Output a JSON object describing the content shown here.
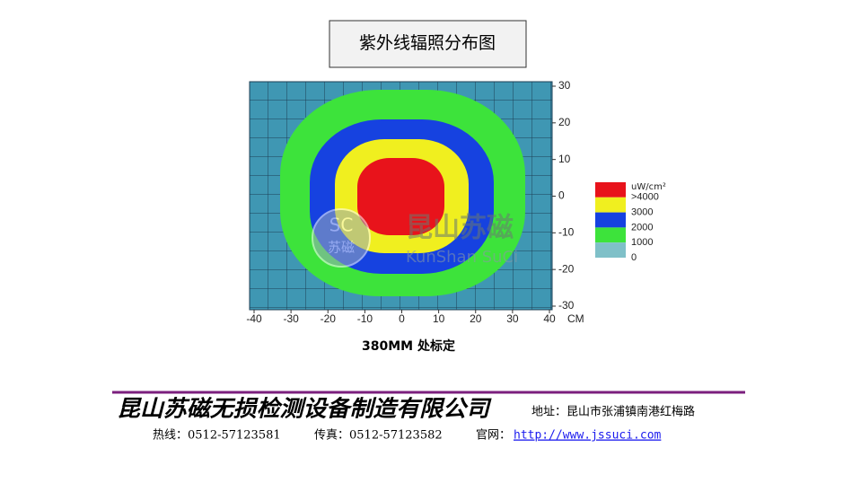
{
  "title": "紫外线辐照分布图",
  "chart": {
    "xticks": [
      -40,
      -30,
      -20,
      -10,
      0,
      10,
      20,
      30,
      40
    ],
    "yticks": [
      30,
      20,
      10,
      0,
      -10,
      -20,
      -30
    ],
    "xlim": [
      -40,
      40
    ],
    "ylim": [
      -30,
      30
    ],
    "x_unit": "CM",
    "legend": {
      "unit": "uW/cm²",
      "items": [
        {
          "label": ">4000",
          "color": "#e8131b"
        },
        {
          "label": "3000",
          "color": "#f0ef1f"
        },
        {
          "label": "2000",
          "color": "#1642e0"
        },
        {
          "label": "1000",
          "color": "#3de33b"
        },
        {
          "label": "0",
          "color": "#7fc0c8"
        }
      ]
    },
    "watermark": {
      "logo_top": "SC",
      "logo_bottom": "苏磁",
      "name": "昆山苏磁",
      "pinyin": "KunShan  SuCi"
    }
  },
  "caption": "380MM 处标定",
  "footer": {
    "company": "昆山苏磁无损检测设备制造有限公司",
    "address": "地址：昆山市张浦镇南港红梅路",
    "hotline": "热线：0512-57123581",
    "fax": "传真：0512-57123582",
    "web_label": "官网：",
    "web_url": "http://www.jssuci.com"
  }
}
